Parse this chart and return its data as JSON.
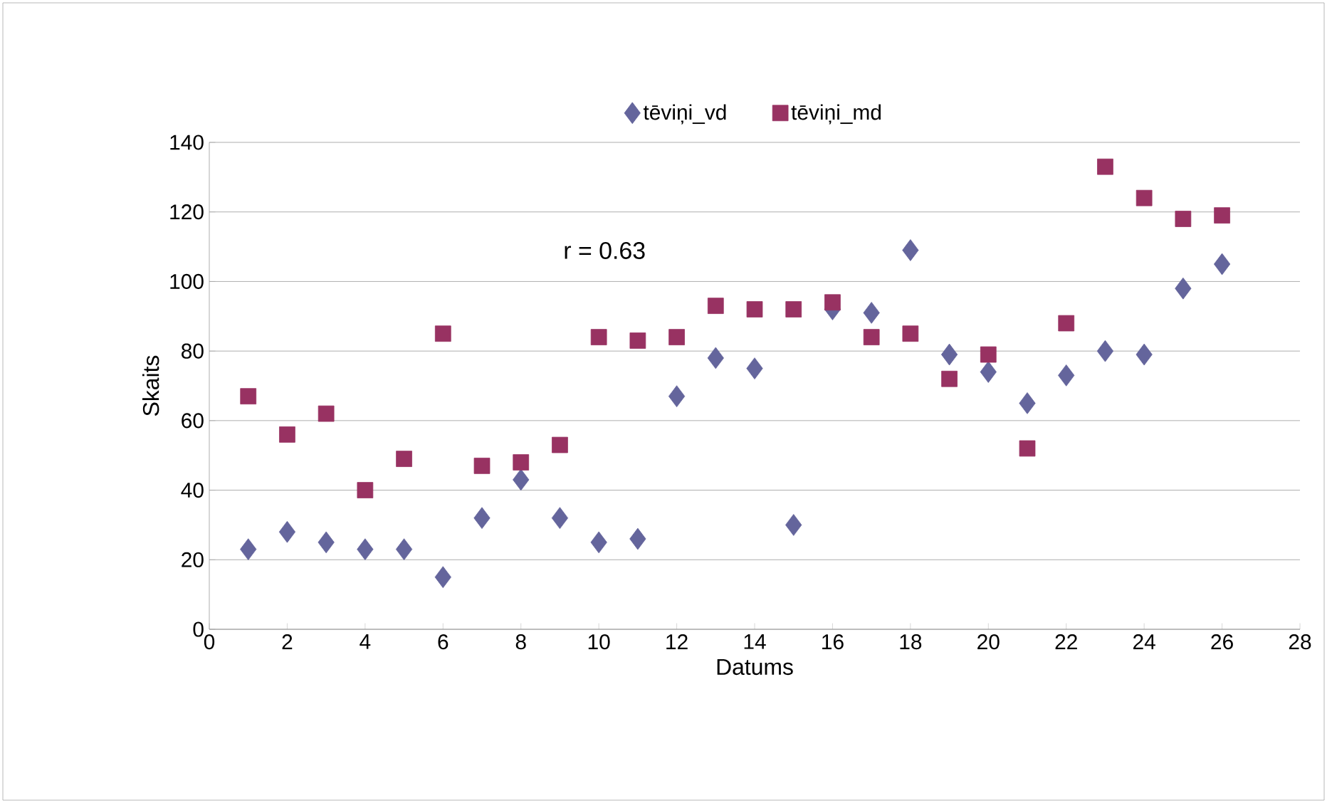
{
  "chart_data": {
    "type": "scatter",
    "xlabel": "Datums",
    "ylabel": "Skaits",
    "x": [
      1,
      2,
      3,
      4,
      5,
      6,
      7,
      8,
      9,
      10,
      11,
      12,
      13,
      14,
      15,
      16,
      17,
      18,
      19,
      20,
      21,
      22,
      23,
      24,
      25,
      26
    ],
    "series": [
      {
        "name": "tēviņi_vd",
        "color": "#64659c",
        "marker": "diamond",
        "values": [
          23,
          28,
          25,
          23,
          23,
          15,
          32,
          43,
          32,
          25,
          26,
          67,
          78,
          75,
          30,
          92,
          91,
          109,
          79,
          74,
          65,
          73,
          80,
          79,
          98,
          105
        ]
      },
      {
        "name": "tēviņi_md",
        "color": "#983262",
        "marker": "square",
        "values": [
          67,
          56,
          62,
          40,
          49,
          85,
          47,
          48,
          53,
          84,
          83,
          84,
          93,
          92,
          92,
          94,
          84,
          85,
          72,
          79,
          52,
          88,
          133,
          124,
          118,
          119
        ]
      }
    ],
    "xlim": [
      0,
      28
    ],
    "xticks": [
      0,
      2,
      4,
      6,
      8,
      10,
      12,
      14,
      16,
      18,
      20,
      22,
      24,
      26,
      28
    ],
    "ylim": [
      0,
      140
    ],
    "yticks": [
      0,
      20,
      40,
      60,
      80,
      100,
      120,
      140
    ],
    "grid": "y",
    "legend": "top",
    "annotations": [
      "r = 0.63"
    ]
  }
}
